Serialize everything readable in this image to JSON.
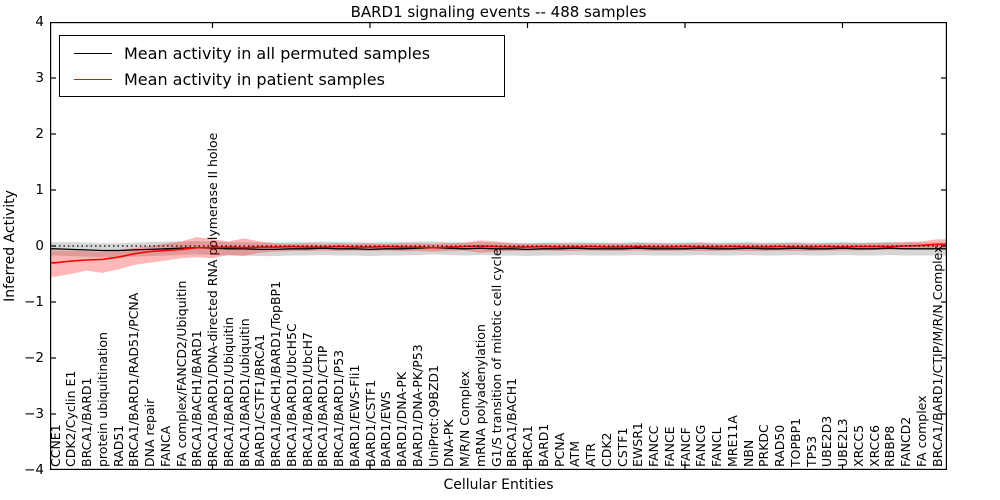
{
  "chart_data": {
    "type": "line",
    "title": "BARD1 signaling events -- 488 samples",
    "xlabel": "Cellular Entities",
    "ylabel": "Inferred Activity",
    "ylim": [
      -4,
      4
    ],
    "yticks": [
      4,
      3,
      2,
      1,
      0,
      -1,
      -2,
      -3,
      -4
    ],
    "ytick_labels": [
      "4",
      "3",
      "2",
      "1",
      "0",
      "−1",
      "−2",
      "−3",
      "−4"
    ],
    "xtick_rotation": 90,
    "grid": false,
    "legend_position": "upper left",
    "categories": [
      "CCNE1",
      "CDK2/Cyclin E1",
      "BRCA1/BARD1",
      "protein ubiquitination",
      "RAD51",
      "BRCA1/BARD1/RAD51/PCNA",
      "DNA repair",
      "FANCA",
      "FA complex/FANCD2/Ubiquitin",
      "BRCA1/BACH1/BARD1",
      "BRCA1/BARD1/DNA-directed RNA polymerase II holoe",
      "BRCA1/BARD1/Ubiquitin",
      "BRCA1/BARD1/ubiquitin",
      "BARD1/CSTF1/BRCA1",
      "BRCA1/BACH1/BARD1/TopBP1",
      "BRCA1/BARD1/UbcH5C",
      "BRCA1/BARD1/UbcH7",
      "BRCA1/BARD1/CTIP",
      "BRCA1/BARD1/P53",
      "BARD1/EWS-Fli1",
      "BARD1/CSTF1",
      "BARD1/EWS",
      "BARD1/DNA-PK",
      "BARD1/DNA-PK/P53",
      "UniProt:Q9BZD1",
      "DNA-PK",
      "M/R/N Complex",
      "mRNA polyadenylation",
      "G1/S transition of mitotic cell cycle",
      "BRCA1/BACH1",
      "BRCA1",
      "BARD1",
      "PCNA",
      "ATM",
      "ATR",
      "CDK2",
      "CSTF1",
      "EWSR1",
      "FANCC",
      "FANCE",
      "FANCF",
      "FANCG",
      "FANCL",
      "MRE11A",
      "NBN",
      "PRKDC",
      "RAD50",
      "TOPBP1",
      "TP53",
      "UBE2D3",
      "UBE2L3",
      "XRCC5",
      "XRCC6",
      "RBBP8",
      "FANCD2",
      "FA complex",
      "BRCA1/BARD1/CTIP/M/R/N Complex"
    ],
    "series": [
      {
        "name": "Mean activity in all permuted samples",
        "color": "#000000",
        "line_style": "solid",
        "values": [
          -0.05,
          -0.06,
          -0.07,
          -0.08,
          -0.08,
          -0.07,
          -0.06,
          -0.05,
          -0.04,
          -0.03,
          -0.04,
          -0.05,
          -0.05,
          -0.06,
          -0.06,
          -0.05,
          -0.05,
          -0.04,
          -0.05,
          -0.05,
          -0.06,
          -0.05,
          -0.05,
          -0.04,
          -0.03,
          -0.04,
          -0.05,
          -0.04,
          -0.05,
          -0.05,
          -0.06,
          -0.05,
          -0.05,
          -0.04,
          -0.05,
          -0.05,
          -0.05,
          -0.04,
          -0.05,
          -0.05,
          -0.05,
          -0.04,
          -0.05,
          -0.05,
          -0.04,
          -0.05,
          -0.05,
          -0.04,
          -0.05,
          -0.05,
          -0.04,
          -0.05,
          -0.05,
          -0.04,
          -0.05,
          -0.05,
          -0.05
        ]
      },
      {
        "name": "Mean activity in patient samples",
        "color": "#ff0000",
        "line_style": "solid",
        "values": [
          -0.3,
          -0.27,
          -0.25,
          -0.24,
          -0.2,
          -0.14,
          -0.1,
          -0.08,
          -0.06,
          -0.03,
          -0.03,
          -0.02,
          -0.03,
          -0.02,
          -0.02,
          -0.01,
          -0.02,
          -0.02,
          -0.01,
          -0.02,
          -0.02,
          -0.01,
          -0.02,
          -0.02,
          -0.03,
          -0.02,
          -0.01,
          0.0,
          -0.01,
          -0.02,
          -0.02,
          -0.01,
          -0.02,
          -0.02,
          -0.01,
          -0.02,
          -0.02,
          -0.01,
          -0.02,
          -0.02,
          -0.01,
          -0.02,
          -0.02,
          -0.01,
          -0.02,
          -0.02,
          -0.01,
          -0.02,
          -0.02,
          -0.01,
          -0.02,
          -0.01,
          -0.01,
          -0.01,
          0.0,
          0.01,
          0.03
        ]
      }
    ],
    "reference_line": {
      "y": 0,
      "style": "dotted",
      "color": "#000000"
    },
    "bands": [
      {
        "name": "permuted-samples-range",
        "color": "rgba(0,0,0,0.16)",
        "upper": [
          0.07,
          0.07,
          0.06,
          0.05,
          0.05,
          0.06,
          0.07,
          0.08,
          0.08,
          0.09,
          0.08,
          0.07,
          0.07,
          0.06,
          0.06,
          0.07,
          0.07,
          0.08,
          0.07,
          0.07,
          0.06,
          0.07,
          0.07,
          0.08,
          0.08,
          0.07,
          0.06,
          0.07,
          0.06,
          0.06,
          0.05,
          0.06,
          0.06,
          0.07,
          0.06,
          0.06,
          0.06,
          0.07,
          0.06,
          0.06,
          0.06,
          0.07,
          0.06,
          0.06,
          0.07,
          0.06,
          0.06,
          0.07,
          0.06,
          0.06,
          0.07,
          0.06,
          0.06,
          0.07,
          0.06,
          0.06,
          0.06
        ],
        "lower": [
          -0.17,
          -0.18,
          -0.19,
          -0.2,
          -0.2,
          -0.19,
          -0.18,
          -0.17,
          -0.16,
          -0.15,
          -0.16,
          -0.17,
          -0.17,
          -0.18,
          -0.18,
          -0.17,
          -0.17,
          -0.16,
          -0.17,
          -0.17,
          -0.18,
          -0.17,
          -0.17,
          -0.16,
          -0.15,
          -0.16,
          -0.17,
          -0.16,
          -0.17,
          -0.17,
          -0.18,
          -0.17,
          -0.17,
          -0.16,
          -0.17,
          -0.17,
          -0.17,
          -0.16,
          -0.17,
          -0.17,
          -0.17,
          -0.16,
          -0.17,
          -0.17,
          -0.16,
          -0.17,
          -0.17,
          -0.16,
          -0.17,
          -0.17,
          -0.16,
          -0.17,
          -0.17,
          -0.16,
          -0.17,
          -0.17,
          -0.17
        ]
      },
      {
        "name": "patient-samples-range",
        "color": "rgba(255,0,0,0.28)",
        "upper": [
          -0.08,
          -0.08,
          -0.09,
          -0.1,
          -0.07,
          -0.04,
          0.0,
          0.04,
          0.08,
          0.16,
          0.12,
          0.08,
          0.14,
          0.08,
          0.05,
          0.04,
          0.05,
          0.04,
          0.05,
          0.04,
          0.05,
          0.04,
          0.05,
          0.05,
          0.04,
          0.05,
          0.06,
          0.1,
          0.08,
          0.05,
          0.04,
          0.05,
          0.05,
          0.04,
          0.05,
          0.05,
          0.04,
          0.05,
          0.05,
          0.04,
          0.05,
          0.05,
          0.04,
          0.05,
          0.05,
          0.04,
          0.05,
          0.05,
          0.04,
          0.05,
          0.05,
          0.05,
          0.06,
          0.06,
          0.07,
          0.08,
          0.12
        ],
        "lower": [
          -0.55,
          -0.5,
          -0.44,
          -0.48,
          -0.42,
          -0.34,
          -0.3,
          -0.26,
          -0.22,
          -0.2,
          -0.22,
          -0.16,
          -0.18,
          -0.12,
          -0.1,
          -0.09,
          -0.09,
          -0.08,
          -0.09,
          -0.08,
          -0.09,
          -0.08,
          -0.09,
          -0.09,
          -0.1,
          -0.09,
          -0.08,
          -0.12,
          -0.1,
          -0.09,
          -0.09,
          -0.08,
          -0.09,
          -0.09,
          -0.08,
          -0.09,
          -0.09,
          -0.08,
          -0.09,
          -0.09,
          -0.08,
          -0.09,
          -0.09,
          -0.08,
          -0.09,
          -0.09,
          -0.08,
          -0.09,
          -0.09,
          -0.08,
          -0.08,
          -0.08,
          -0.07,
          -0.07,
          -0.06,
          -0.06,
          -0.05
        ]
      }
    ]
  }
}
